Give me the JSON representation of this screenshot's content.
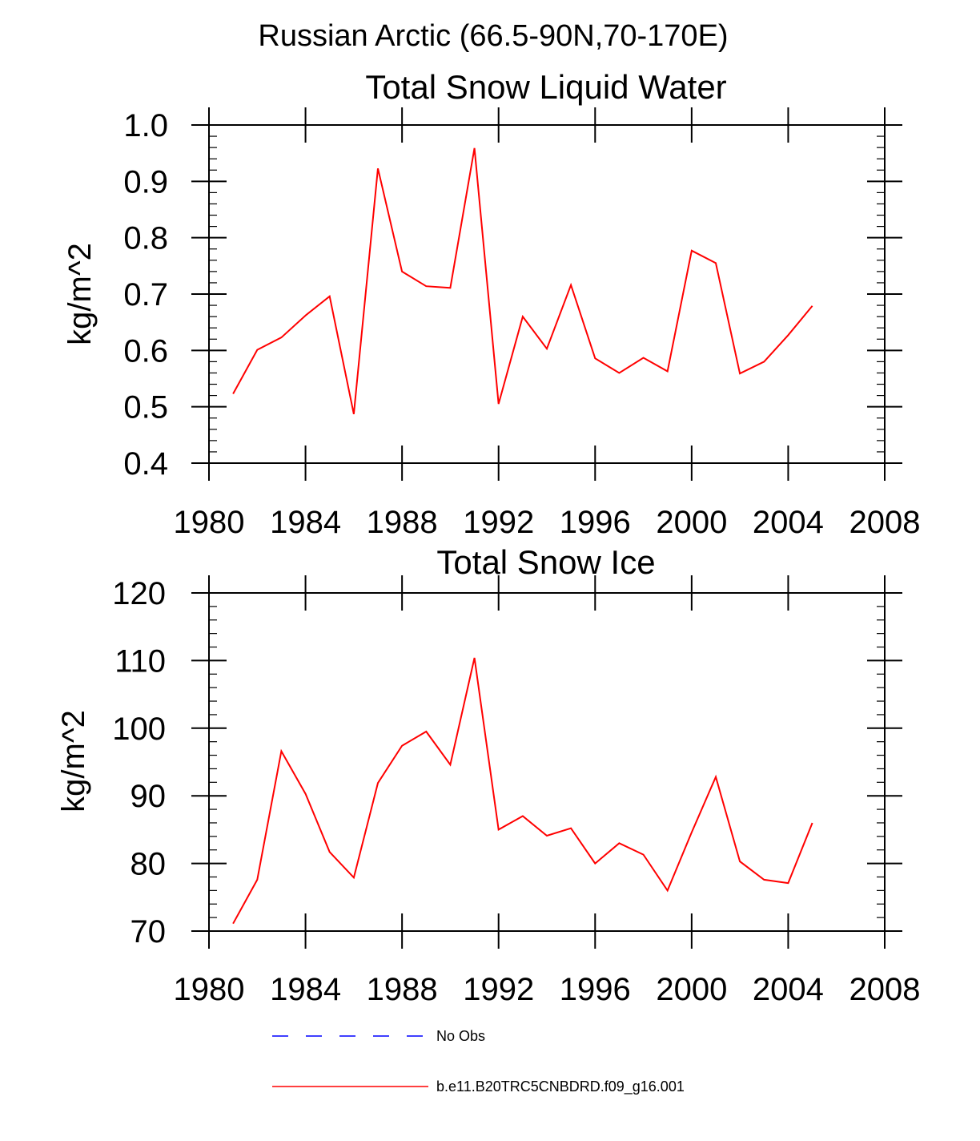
{
  "figure": {
    "title": "Russian Arctic (66.5-90N,70-170E)",
    "colors": {
      "model": "#ff0000",
      "obs": "#0000ff",
      "axis": "#000000"
    }
  },
  "chart_data": [
    {
      "type": "line",
      "title": "Total Snow Liquid Water",
      "xlabel": "",
      "ylabel": "kg/m^2",
      "xlim": [
        1980,
        2008
      ],
      "ylim": [
        0.4,
        1.0
      ],
      "x_ticks": [
        1980,
        1984,
        1988,
        1992,
        1996,
        2000,
        2004,
        2008
      ],
      "x_tick_labels": [
        "1980",
        "1984",
        "1988",
        "1992",
        "1996",
        "2000",
        "2004",
        "2008"
      ],
      "y_ticks": [
        0.4,
        0.5,
        0.6,
        0.7,
        0.8,
        0.9,
        1.0
      ],
      "y_tick_labels": [
        "0.4",
        "0.5",
        "0.6",
        "0.7",
        "0.8",
        "0.9",
        "1.0"
      ],
      "y_minor_step": 0.02,
      "x": [
        1981,
        1982,
        1983,
        1984,
        1985,
        1986,
        1987,
        1988,
        1989,
        1990,
        1991,
        1992,
        1993,
        1994,
        1995,
        1996,
        1997,
        1998,
        1999,
        2000,
        2001,
        2002,
        2003,
        2004,
        2005
      ],
      "series": [
        {
          "name": "b.e11.B20TRC5CNBDRD.f09_g16.001",
          "color": "#ff0000",
          "values": [
            0.523,
            0.601,
            0.623,
            0.662,
            0.696,
            0.487,
            0.923,
            0.74,
            0.714,
            0.711,
            0.959,
            0.505,
            0.66,
            0.603,
            0.716,
            0.586,
            0.56,
            0.587,
            0.563,
            0.777,
            0.755,
            0.559,
            0.58,
            0.627,
            0.679
          ]
        }
      ]
    },
    {
      "type": "line",
      "title": "Total Snow Ice",
      "xlabel": "",
      "ylabel": "kg/m^2",
      "xlim": [
        1980,
        2008
      ],
      "ylim": [
        70,
        120
      ],
      "x_ticks": [
        1980,
        1984,
        1988,
        1992,
        1996,
        2000,
        2004,
        2008
      ],
      "x_tick_labels": [
        "1980",
        "1984",
        "1988",
        "1992",
        "1996",
        "2000",
        "2004",
        "2008"
      ],
      "y_ticks": [
        70,
        80,
        90,
        100,
        110,
        120
      ],
      "y_tick_labels": [
        "70",
        "80",
        "90",
        "100",
        "110",
        "120"
      ],
      "y_minor_step": 2,
      "x": [
        1981,
        1982,
        1983,
        1984,
        1985,
        1986,
        1987,
        1988,
        1989,
        1990,
        1991,
        1992,
        1993,
        1994,
        1995,
        1996,
        1997,
        1998,
        1999,
        2000,
        2001,
        2002,
        2003,
        2004,
        2005
      ],
      "series": [
        {
          "name": "b.e11.B20TRC5CNBDRD.f09_g16.001",
          "color": "#ff0000",
          "values": [
            71.1,
            77.6,
            96.6,
            90.3,
            81.7,
            77.9,
            91.9,
            97.4,
            99.5,
            94.6,
            110.4,
            85.0,
            87.0,
            84.1,
            85.2,
            80.0,
            83.0,
            81.3,
            76.0,
            84.6,
            92.8,
            80.3,
            77.6,
            77.1,
            86.0
          ]
        }
      ]
    }
  ],
  "legend": {
    "entries": [
      {
        "label": "No Obs",
        "style": "dashed",
        "color": "#0000ff"
      },
      {
        "label": "b.e11.B20TRC5CNBDRD.f09_g16.001",
        "style": "solid",
        "color": "#ff0000"
      }
    ]
  }
}
